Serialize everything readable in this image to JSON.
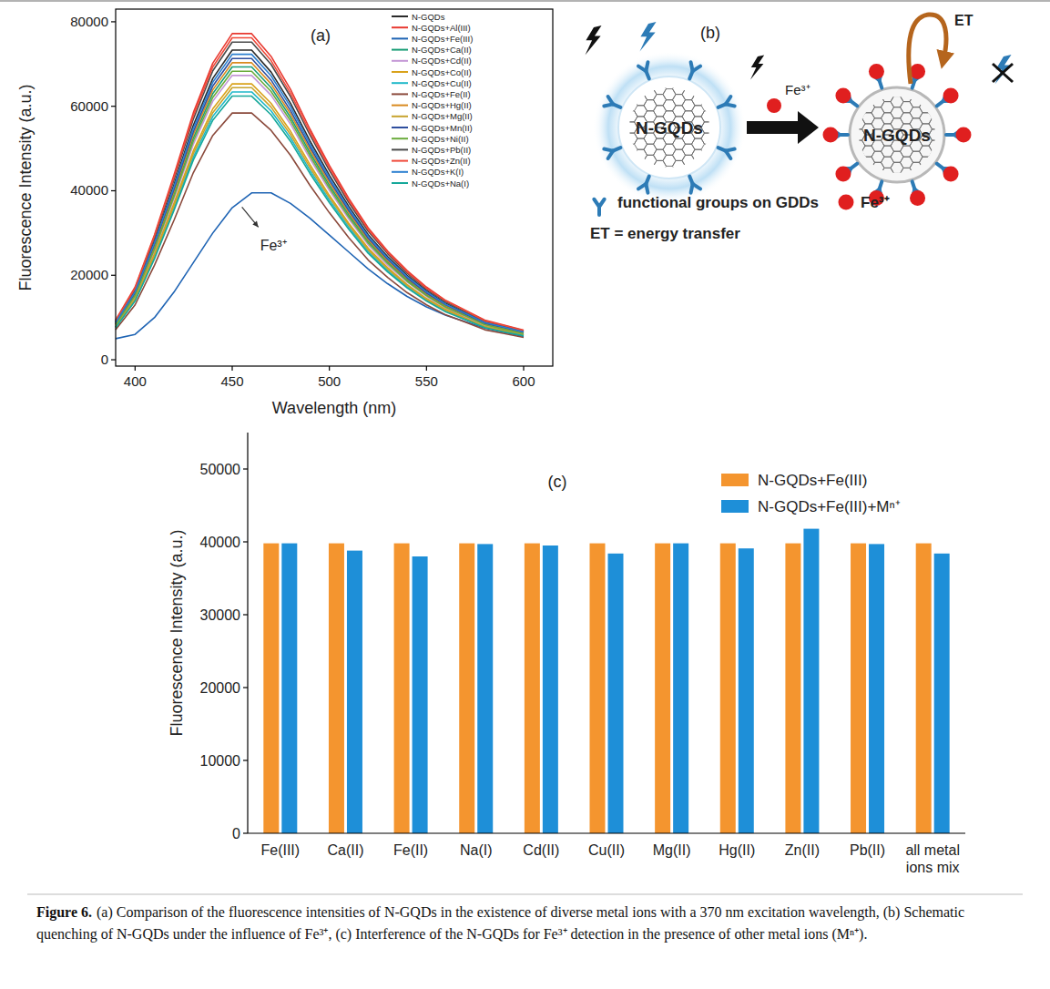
{
  "chart_data": [
    {
      "type": "line",
      "title": "(a)",
      "xlabel": "Wavelength (nm)",
      "ylabel": "Fluorescence Intensity (a.u.)",
      "x": [
        390,
        400,
        410,
        420,
        430,
        440,
        450,
        460,
        470,
        480,
        490,
        500,
        510,
        520,
        530,
        540,
        550,
        560,
        570,
        580,
        590,
        600
      ],
      "xlim": [
        390,
        615
      ],
      "xticks": [
        400,
        450,
        500,
        550,
        600
      ],
      "ylim": [
        -1500,
        83000
      ],
      "yticks": [
        0,
        20000,
        40000,
        60000,
        80000
      ],
      "grid": false,
      "legend": "top-right",
      "series": [
        {
          "name": "N-GQDs",
          "color": "#2b2b2b",
          "values": [
            8900,
            16300,
            28100,
            41400,
            55500,
            66600,
            73300,
            73300,
            68100,
            60700,
            51800,
            43700,
            36300,
            29600,
            24400,
            20000,
            16300,
            13300,
            11100,
            8900,
            7800,
            6700
          ]
        },
        {
          "name": "N-GQDs+Al(III)",
          "color": "#e8382f",
          "values": [
            9400,
            17200,
            29600,
            43700,
            58500,
            70200,
            77200,
            77200,
            71800,
            64000,
            54600,
            46000,
            38200,
            31200,
            25700,
            21100,
            17200,
            14000,
            11700,
            9400,
            8200,
            7000
          ]
        },
        {
          "name": "N-GQDs+Fe(III)",
          "color": "#1f64b4",
          "values": [
            5000,
            6000,
            10000,
            16000,
            23000,
            30000,
            36000,
            39500,
            39500,
            37000,
            33500,
            29500,
            25500,
            21500,
            18000,
            15000,
            12500,
            10500,
            9000,
            7500,
            6500,
            5500
          ]
        },
        {
          "name": "N-GQDs+Ca(II)",
          "color": "#1a9e77",
          "values": [
            8400,
            15400,
            26600,
            39200,
            52500,
            63000,
            69300,
            69300,
            64400,
            57400,
            49000,
            41300,
            34300,
            28000,
            23100,
            18900,
            15400,
            12600,
            10500,
            8400,
            7400,
            6300
          ]
        },
        {
          "name": "N-GQDs+Cd(II)",
          "color": "#c497d6",
          "values": [
            8200,
            15000,
            25800,
            38100,
            51000,
            61200,
            67300,
            67300,
            62600,
            55800,
            47600,
            40100,
            33300,
            27200,
            22400,
            18400,
            15000,
            12200,
            10200,
            8200,
            7100,
            6100
          ]
        },
        {
          "name": "N-GQDs+Co(II)",
          "color": "#d9a21b",
          "values": [
            7900,
            14500,
            25100,
            37000,
            49500,
            59400,
            65300,
            65300,
            60700,
            54100,
            46200,
            38900,
            32300,
            26400,
            21800,
            17800,
            14500,
            11900,
            9900,
            7900,
            6900,
            5900
          ]
        },
        {
          "name": "N-GQDs+Cu(II)",
          "color": "#1fb8c9",
          "values": [
            7700,
            14100,
            24300,
            35800,
            48000,
            57600,
            63400,
            63400,
            58900,
            52500,
            44800,
            37800,
            31400,
            25600,
            21100,
            17300,
            14100,
            11500,
            9600,
            7700,
            6700,
            5800
          ]
        },
        {
          "name": "N-GQDs+Fe(II)",
          "color": "#8b4a3c",
          "values": [
            7100,
            13000,
            22400,
            33000,
            44300,
            53100,
            58400,
            58400,
            54300,
            48400,
            41300,
            34800,
            28900,
            23600,
            19500,
            15900,
            13000,
            10600,
            8900,
            7100,
            6200,
            5300
          ]
        },
        {
          "name": "N-GQDs+Hg(II)",
          "color": "#d98a1f",
          "values": [
            8500,
            15600,
            27000,
            39800,
            53300,
            63900,
            70300,
            70300,
            65300,
            58200,
            49700,
            41900,
            34800,
            28400,
            23400,
            19200,
            15600,
            12800,
            10700,
            8500,
            7500,
            6400
          ]
        },
        {
          "name": "N-GQDs+Mg(II)",
          "color": "#c7a32e",
          "values": [
            7800,
            14300,
            24700,
            36400,
            48800,
            58500,
            64400,
            64400,
            59800,
            53300,
            45500,
            38400,
            31900,
            26000,
            21500,
            17600,
            14300,
            11700,
            9800,
            7800,
            6800,
            5900
          ]
        },
        {
          "name": "N-GQDs+Mn(II)",
          "color": "#2f4f9e",
          "values": [
            8600,
            15800,
            27400,
            40300,
            54000,
            64800,
            71300,
            71300,
            66200,
            59000,
            50400,
            42500,
            35300,
            28800,
            23800,
            19400,
            15800,
            13000,
            10800,
            8600,
            7600,
            6500
          ]
        },
        {
          "name": "N-GQDs+Ni(II)",
          "color": "#6aab3c",
          "values": [
            8300,
            15200,
            26200,
            38600,
            51800,
            62100,
            68300,
            68300,
            63500,
            56600,
            48300,
            40700,
            33800,
            27600,
            22800,
            18600,
            15200,
            12400,
            10400,
            8300,
            7200,
            6200
          ]
        },
        {
          "name": "N-GQDs+Pb(II)",
          "color": "#4a4a4a",
          "values": [
            9100,
            16700,
            28900,
            42600,
            57000,
            68400,
            75200,
            75200,
            69900,
            62300,
            53200,
            44800,
            37200,
            30400,
            25100,
            20500,
            16700,
            13700,
            11400,
            9100,
            8000,
            6800
          ]
        },
        {
          "name": "N-GQDs+Zn(II)",
          "color": "#f04a3a",
          "values": [
            9200,
            16900,
            29300,
            43100,
            57800,
            69300,
            76200,
            76200,
            70800,
            63100,
            53900,
            45400,
            37700,
            30800,
            25400,
            20800,
            16900,
            13900,
            11600,
            9200,
            8100,
            6900
          ]
        },
        {
          "name": "N-GQDs+K(I)",
          "color": "#2a7fd0",
          "values": [
            8800,
            16100,
            27700,
            40900,
            54800,
            65700,
            72300,
            72300,
            67200,
            59900,
            51100,
            43100,
            35800,
            29200,
            24100,
            19700,
            16100,
            13100,
            11000,
            8800,
            7700,
            6600
          ]
        },
        {
          "name": "N-GQDs+Na(I)",
          "color": "#16a89a",
          "values": [
            7600,
            13900,
            23900,
            35300,
            47300,
            56700,
            62400,
            62400,
            58000,
            51700,
            44100,
            37200,
            30900,
            25200,
            20800,
            17000,
            13900,
            11300,
            9500,
            7600,
            6600,
            5700
          ]
        }
      ],
      "annotations": [
        {
          "text": "Fe³⁺",
          "x": 455,
          "y": 37000
        }
      ]
    },
    {
      "type": "bar",
      "title": "(c)",
      "ylabel": "Fluorescence Intensity (a.u.)",
      "categories": [
        "Fe(III)",
        "Ca(II)",
        "Fe(II)",
        "Na(I)",
        "Cd(II)",
        "Cu(II)",
        "Mg(II)",
        "Hg(II)",
        "Zn(II)",
        "Pb(II)",
        "all metal ions mix"
      ],
      "ylim": [
        0,
        55000
      ],
      "yticks": [
        0,
        10000,
        20000,
        30000,
        40000,
        50000
      ],
      "grid": false,
      "legend": "top-right",
      "series": [
        {
          "name": "N-GQDs+Fe(III)",
          "color": "#f4952f",
          "values": [
            39800,
            39800,
            39800,
            39800,
            39800,
            39800,
            39800,
            39800,
            39800,
            39800,
            39800
          ]
        },
        {
          "name": "N-GQDs+Fe(III)+Mⁿ⁺",
          "color": "#1e8fd8",
          "values": [
            39800,
            38800,
            38000,
            39700,
            39500,
            38400,
            39800,
            39100,
            41800,
            39700,
            38400
          ]
        }
      ]
    }
  ],
  "diagram": {
    "label": "(b)",
    "before": {
      "label": "N-GQDs"
    },
    "after": {
      "label": "N-GQDs"
    },
    "reagent": "Fe³⁺",
    "transfer": "ET",
    "legend": [
      {
        "label": "functional groups on GDDs"
      },
      {
        "label": "Fe³⁺"
      }
    ],
    "definition": "ET = energy transfer"
  },
  "caption": {
    "label": "Figure 6.",
    "text": "(a) Comparison of the fluorescence intensities of N-GQDs in the existence of diverse metal ions with a 370 nm excitation wavelength, (b) Schematic quenching of N-GQDs under the influence of Fe³⁺, (c) Interference of the N-GQDs for Fe³⁺ detection in the presence of other metal ions (Mⁿ⁺)."
  }
}
